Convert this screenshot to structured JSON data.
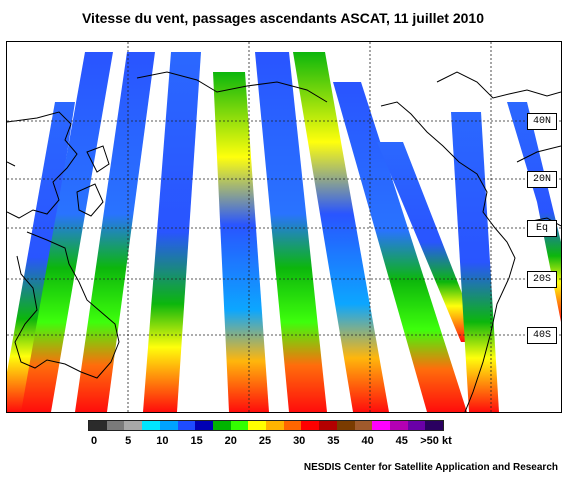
{
  "title": "Vitesse du vent, passages ascendants ASCAT, 11 juillet 2010",
  "credit": "NESDIS Center for Satellite Application and Research",
  "latitude_labels": [
    "40N",
    "20N",
    "Eq",
    "20S",
    "40S"
  ],
  "legend": {
    "ticks": [
      "0",
      "5",
      "10",
      "15",
      "20",
      "25",
      "30",
      "35",
      "40",
      "45",
      ">50 kt"
    ],
    "colors": [
      "#2b2b2b",
      "#7a7a7a",
      "#a8a8a8",
      "#00e5ff",
      "#00a2ff",
      "#1e4cff",
      "#0000b3",
      "#00b300",
      "#33ff00",
      "#ffff00",
      "#ffb300",
      "#ff6600",
      "#ff0000",
      "#b30000",
      "#7a3b00",
      "#a05a2c",
      "#ff00ff",
      "#b300b3",
      "#6a00a8",
      "#2a0060"
    ]
  },
  "map": {
    "land_color": "#ffffff",
    "coast_color": "#000000",
    "grid_color": "#222222"
  }
}
